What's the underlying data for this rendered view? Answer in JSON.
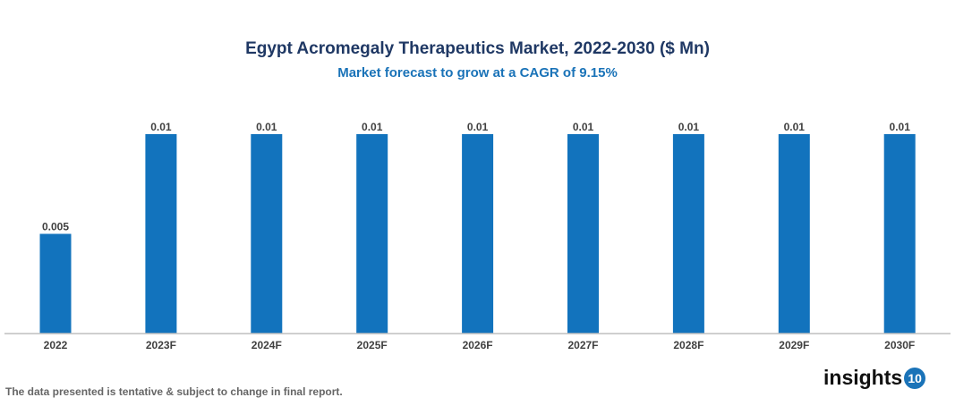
{
  "chart_data": {
    "type": "bar",
    "title": "Egypt Acromegaly Therapeutics Market, 2022-2030 ($ Mn)",
    "subtitle": "Market forecast to grow at a CAGR of 9.15%",
    "categories": [
      "2022",
      "2023F",
      "2024F",
      "2025F",
      "2026F",
      "2027F",
      "2028F",
      "2029F",
      "2030F"
    ],
    "values": [
      0.005,
      0.01,
      0.01,
      0.01,
      0.01,
      0.01,
      0.01,
      0.01,
      0.01
    ],
    "data_labels": [
      "0.005",
      "0.01",
      "0.01",
      "0.01",
      "0.01",
      "0.01",
      "0.01",
      "0.01",
      "0.01"
    ],
    "xlabel": "",
    "ylabel": "",
    "ylim": [
      0,
      0.01
    ],
    "grid": false,
    "bar_color": "#1273bd"
  },
  "footer": "The data presented is tentative & subject to change in final report.",
  "logo": {
    "text": "insights",
    "badge": "10"
  }
}
